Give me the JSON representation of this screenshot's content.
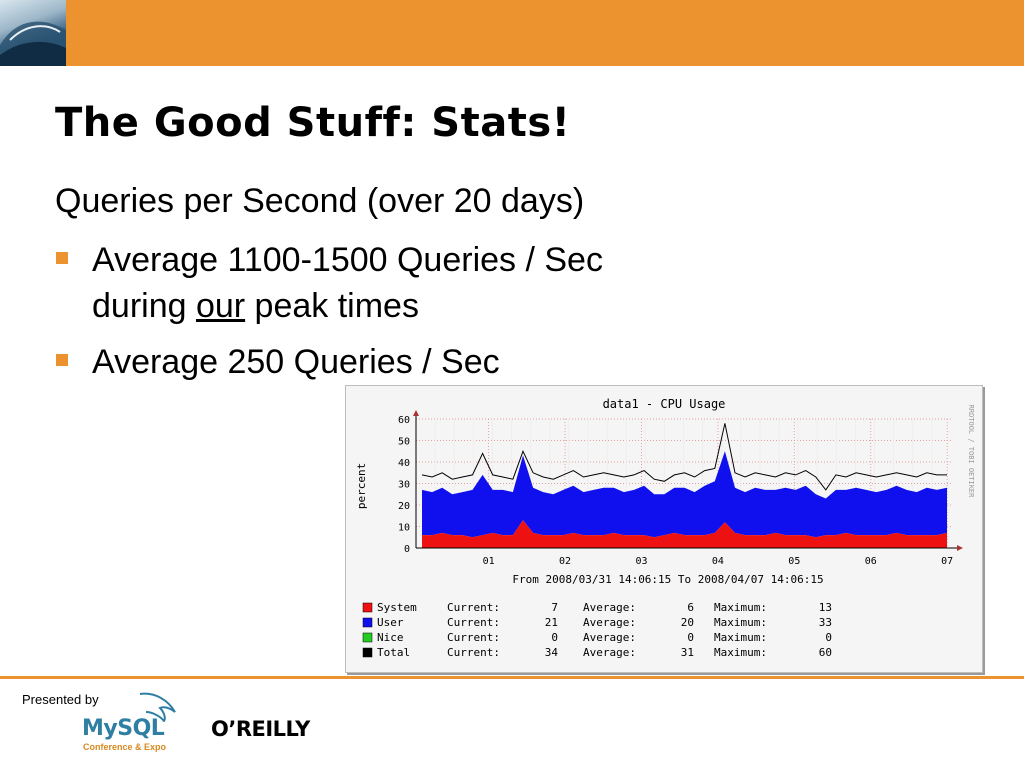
{
  "slide": {
    "title": "The Good Stuff: Stats!",
    "subheading": "Queries per Second (over 20 days)",
    "bullets": [
      {
        "line1": "Average 1100-1500 Queries / Sec",
        "line2_pre": "during ",
        "line2_emph": "our",
        "line2_post": " peak times"
      },
      {
        "line1": "Average 250 Queries / Sec"
      }
    ]
  },
  "footer": {
    "presented_by": "Presented by",
    "mysql_word": "MySQL",
    "mysql_sub": "Conference & Expo",
    "oreilly": "O’REILLY"
  },
  "colors": {
    "accent": "#ec9330",
    "system": "#ee1111",
    "user": "#1010ee",
    "nice": "#22cc22",
    "total": "#000000"
  },
  "chart_data": {
    "type": "area",
    "title": "data1 - CPU Usage",
    "ylabel": "percent",
    "side_text": "RRDTOOL / TOBI OETIKER",
    "date_range": "From 2008/03/31 14:06:15 To 2008/04/07 14:06:15",
    "ylim": [
      0,
      60
    ],
    "yticks": [
      "0",
      "10",
      "20",
      "30",
      "40",
      "50",
      "60"
    ],
    "xticks": [
      "01",
      "02",
      "03",
      "04",
      "05",
      "06",
      "07"
    ],
    "grid": true,
    "legend_placement": "bottom",
    "series": [
      {
        "name": "System",
        "color": "#ee1111",
        "current": "7",
        "average": "6",
        "maximum": "13",
        "values": [
          6,
          6,
          7,
          6,
          6,
          5,
          6,
          7,
          6,
          6,
          13,
          7,
          6,
          6,
          6,
          7,
          6,
          6,
          6,
          7,
          6,
          6,
          6,
          5,
          6,
          7,
          6,
          6,
          6,
          7,
          12,
          7,
          6,
          6,
          6,
          7,
          6,
          6,
          6,
          5,
          6,
          6,
          7,
          6,
          6,
          6,
          6,
          7,
          6,
          6,
          6,
          6,
          7
        ]
      },
      {
        "name": "User",
        "color": "#1010ee",
        "current": "21",
        "average": "20",
        "maximum": "33",
        "values": [
          21,
          20,
          21,
          19,
          20,
          22,
          28,
          20,
          21,
          20,
          30,
          21,
          20,
          19,
          21,
          22,
          20,
          21,
          22,
          21,
          20,
          21,
          23,
          20,
          19,
          21,
          22,
          20,
          23,
          24,
          33,
          21,
          20,
          22,
          21,
          20,
          22,
          21,
          23,
          20,
          17,
          21,
          20,
          22,
          21,
          20,
          21,
          22,
          21,
          20,
          22,
          21,
          21
        ]
      },
      {
        "name": "Nice",
        "color": "#22cc22",
        "current": "0",
        "average": "0",
        "maximum": "0",
        "values": [
          0,
          0,
          0,
          0,
          0,
          0,
          0,
          0,
          0,
          0,
          0,
          0,
          0,
          0,
          0,
          0,
          0,
          0,
          0,
          0,
          0,
          0,
          0,
          0,
          0,
          0,
          0,
          0,
          0,
          0,
          0,
          0,
          0,
          0,
          0,
          0,
          0,
          0,
          0,
          0,
          0,
          0,
          0,
          0,
          0,
          0,
          0,
          0,
          0,
          0,
          0,
          0,
          0
        ]
      },
      {
        "name": "Total",
        "color": "#000000",
        "current": "34",
        "average": "31",
        "maximum": "60",
        "values": [
          34,
          33,
          35,
          32,
          33,
          34,
          44,
          34,
          33,
          32,
          45,
          35,
          33,
          32,
          34,
          36,
          33,
          34,
          35,
          34,
          33,
          34,
          36,
          32,
          31,
          34,
          35,
          33,
          36,
          37,
          58,
          35,
          33,
          35,
          34,
          33,
          35,
          34,
          36,
          33,
          27,
          34,
          33,
          35,
          34,
          33,
          34,
          35,
          34,
          33,
          35,
          34,
          34
        ]
      }
    ]
  }
}
